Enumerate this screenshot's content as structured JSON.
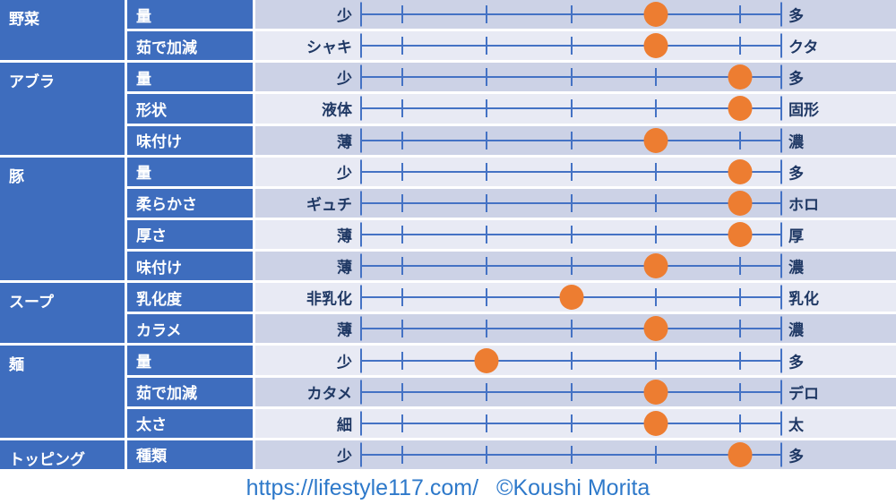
{
  "chart_data": {
    "type": "table",
    "title": "",
    "scale": {
      "min": 1,
      "max": 5,
      "tick_positions_pct": [
        10,
        30,
        50,
        70,
        90
      ],
      "note": "dot value v rendered at (2v-1)*10% of scale width"
    },
    "groups": [
      {
        "name": "野菜",
        "rows": [
          {
            "attribute": "量",
            "min_label": "少",
            "max_label": "多",
            "value": 4
          },
          {
            "attribute": "茹で加減",
            "min_label": "シャキ",
            "max_label": "クタ",
            "value": 4
          }
        ]
      },
      {
        "name": "アブラ",
        "rows": [
          {
            "attribute": "量",
            "min_label": "少",
            "max_label": "多",
            "value": 5
          },
          {
            "attribute": "形状",
            "min_label": "液体",
            "max_label": "固形",
            "value": 5
          },
          {
            "attribute": "味付け",
            "min_label": "薄",
            "max_label": "濃",
            "value": 4
          }
        ]
      },
      {
        "name": "豚",
        "rows": [
          {
            "attribute": "量",
            "min_label": "少",
            "max_label": "多",
            "value": 5
          },
          {
            "attribute": "柔らかさ",
            "min_label": "ギュチ",
            "max_label": "ホロ",
            "value": 5
          },
          {
            "attribute": "厚さ",
            "min_label": "薄",
            "max_label": "厚",
            "value": 5
          },
          {
            "attribute": "味付け",
            "min_label": "薄",
            "max_label": "濃",
            "value": 4
          }
        ]
      },
      {
        "name": "スープ",
        "rows": [
          {
            "attribute": "乳化度",
            "min_label": "非乳化",
            "max_label": "乳化",
            "value": 3
          },
          {
            "attribute": "カラメ",
            "min_label": "薄",
            "max_label": "濃",
            "value": 4
          }
        ]
      },
      {
        "name": "麺",
        "rows": [
          {
            "attribute": "量",
            "min_label": "少",
            "max_label": "多",
            "value": 2
          },
          {
            "attribute": "茹で加減",
            "min_label": "カタメ",
            "max_label": "デロ",
            "value": 4
          },
          {
            "attribute": "太さ",
            "min_label": "細",
            "max_label": "太",
            "value": 4
          }
        ]
      },
      {
        "name": "トッピング",
        "rows": [
          {
            "attribute": "種類",
            "min_label": "少",
            "max_label": "多",
            "value": 5
          }
        ]
      }
    ]
  },
  "footer": {
    "url": "https://lifestyle117.com/",
    "credit": "©Koushi Morita"
  },
  "colors": {
    "blue": "#3E6DBE",
    "row_dark": "#CCD2E6",
    "row_light": "#E8EAF4",
    "line": "#4472C4",
    "dot": "#ED7D31",
    "navy": "#1F3864",
    "footer_text": "#2E79CA"
  }
}
